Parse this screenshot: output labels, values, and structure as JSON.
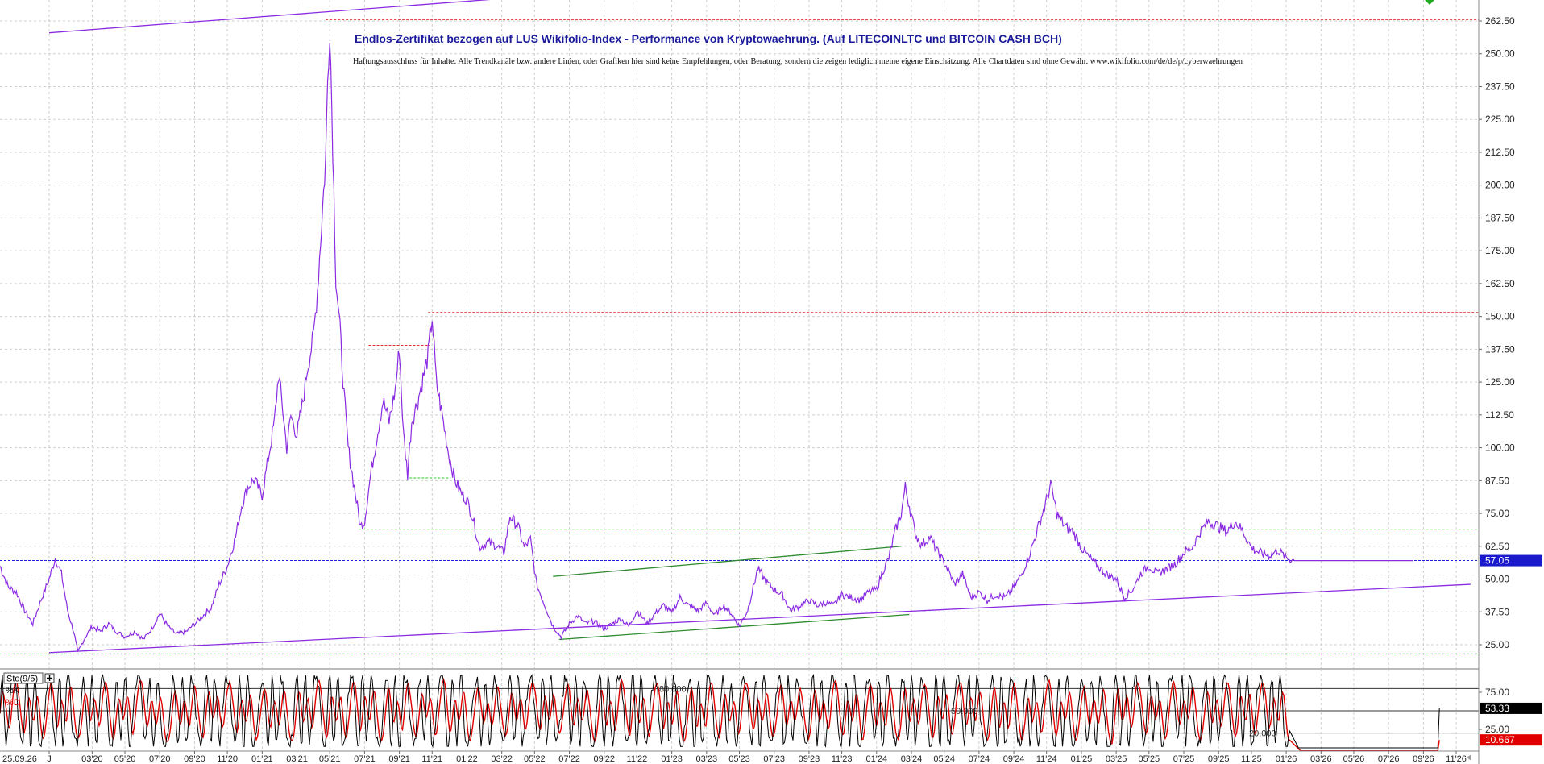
{
  "chart_data": [
    {
      "type": "line",
      "title": "Endlos-Zertifikat bezogen auf LUS Wikifolio-Index - Performance von Kryptowaehrung. (Auf LITECOINLTC und BITCOIN CASH BCH)",
      "subtitle": "Haftungsausschluss für Inhalte: Alle Trendkanäle bzw. andere Linien, oder Grafiken hier sind keine Empfehlungen, oder Beratung, sondern die zeigen lediglich meine eigene Einschätzung. Alle Chartdaten sind ohne Gewähr.  www.wikifolio.com/de/de/p/cyberwaehrungen",
      "xlabel": "",
      "ylabel": "",
      "ylim": [
        20,
        265
      ],
      "xlim": [
        2019.72,
        2026.94
      ],
      "grid": true,
      "y_ticks": [
        "262.50",
        "250.00",
        "237.50",
        "225.00",
        "212.50",
        "200.00",
        "187.50",
        "175.00",
        "162.50",
        "150.00",
        "137.50",
        "125.00",
        "112.50",
        "100.00",
        "87.50",
        "75.00",
        "62.50",
        "50.00",
        "37.50",
        "25.00"
      ],
      "x_ticks": [
        {
          "t": 2019.73,
          "label": "25.09.26"
        },
        {
          "t": 2019.96,
          "label": "J"
        },
        {
          "t": 2020.17,
          "label": "03'20"
        },
        {
          "t": 2020.33,
          "label": "05'20"
        },
        {
          "t": 2020.5,
          "label": "07'20"
        },
        {
          "t": 2020.67,
          "label": "09'20"
        },
        {
          "t": 2020.83,
          "label": "11'20"
        },
        {
          "t": 2021.0,
          "label": "01'21"
        },
        {
          "t": 2021.17,
          "label": "03'21"
        },
        {
          "t": 2021.33,
          "label": "05'21"
        },
        {
          "t": 2021.5,
          "label": "07'21"
        },
        {
          "t": 2021.67,
          "label": "09'21"
        },
        {
          "t": 2021.83,
          "label": "11'21"
        },
        {
          "t": 2022.0,
          "label": "01'22"
        },
        {
          "t": 2022.17,
          "label": "03'22"
        },
        {
          "t": 2022.33,
          "label": "05'22"
        },
        {
          "t": 2022.5,
          "label": "07'22"
        },
        {
          "t": 2022.67,
          "label": "09'22"
        },
        {
          "t": 2022.83,
          "label": "11'22"
        },
        {
          "t": 2023.0,
          "label": "01'23"
        },
        {
          "t": 2023.17,
          "label": "03'23"
        },
        {
          "t": 2023.33,
          "label": "05'23"
        },
        {
          "t": 2023.5,
          "label": "07'23"
        },
        {
          "t": 2023.67,
          "label": "09'23"
        },
        {
          "t": 2023.83,
          "label": "11'23"
        },
        {
          "t": 2024.0,
          "label": "01'24"
        },
        {
          "t": 2024.17,
          "label": "03'24"
        },
        {
          "t": 2024.33,
          "label": "05'24"
        },
        {
          "t": 2024.5,
          "label": "07'24"
        },
        {
          "t": 2024.67,
          "label": "09'24"
        },
        {
          "t": 2024.83,
          "label": "11'24"
        },
        {
          "t": 2025.0,
          "label": "01'25"
        },
        {
          "t": 2025.17,
          "label": "03'25"
        },
        {
          "t": 2025.33,
          "label": "05'25"
        },
        {
          "t": 2025.5,
          "label": "07'25"
        },
        {
          "t": 2025.67,
          "label": "09'25"
        },
        {
          "t": 2025.83,
          "label": "11'25"
        },
        {
          "t": 2026.0,
          "label": "01'26"
        },
        {
          "t": 2026.17,
          "label": "03'26"
        },
        {
          "t": 2026.33,
          "label": "05'26"
        },
        {
          "t": 2026.5,
          "label": "07'26"
        },
        {
          "t": 2026.67,
          "label": "09'26"
        },
        {
          "t": 2026.83,
          "label": "11'26"
        }
      ],
      "series": [
        {
          "color": "#8a2be2",
          "points": [
            [
              2019.72,
              55
            ],
            [
              2019.76,
              47
            ],
            [
              2019.8,
              45
            ],
            [
              2019.84,
              38
            ],
            [
              2019.88,
              33
            ],
            [
              2019.92,
              42
            ],
            [
              2019.96,
              50
            ],
            [
              2019.99,
              58
            ],
            [
              2020.02,
              52
            ],
            [
              2020.05,
              38
            ],
            [
              2020.08,
              30
            ],
            [
              2020.1,
              22
            ],
            [
              2020.13,
              27
            ],
            [
              2020.17,
              32
            ],
            [
              2020.21,
              30
            ],
            [
              2020.25,
              33
            ],
            [
              2020.29,
              30
            ],
            [
              2020.33,
              28
            ],
            [
              2020.38,
              30
            ],
            [
              2020.42,
              27
            ],
            [
              2020.46,
              31
            ],
            [
              2020.5,
              37
            ],
            [
              2020.54,
              32
            ],
            [
              2020.58,
              29
            ],
            [
              2020.63,
              30
            ],
            [
              2020.67,
              33
            ],
            [
              2020.71,
              36
            ],
            [
              2020.75,
              39
            ],
            [
              2020.79,
              48
            ],
            [
              2020.83,
              55
            ],
            [
              2020.87,
              66
            ],
            [
              2020.9,
              78
            ],
            [
              2020.93,
              85
            ],
            [
              2020.96,
              88
            ],
            [
              2021.0,
              82
            ],
            [
              2021.03,
              96
            ],
            [
              2021.06,
              110
            ],
            [
              2021.08,
              128
            ],
            [
              2021.1,
              115
            ],
            [
              2021.12,
              100
            ],
            [
              2021.14,
              112
            ],
            [
              2021.17,
              105
            ],
            [
              2021.2,
              118
            ],
            [
              2021.22,
              130
            ],
            [
              2021.25,
              142
            ],
            [
              2021.27,
              160
            ],
            [
              2021.29,
              185
            ],
            [
              2021.31,
              210
            ],
            [
              2021.32,
              240
            ],
            [
              2021.33,
              262
            ],
            [
              2021.345,
              215
            ],
            [
              2021.36,
              165
            ],
            [
              2021.38,
              145
            ],
            [
              2021.4,
              120
            ],
            [
              2021.42,
              100
            ],
            [
              2021.44,
              90
            ],
            [
              2021.46,
              80
            ],
            [
              2021.48,
              70
            ],
            [
              2021.5,
              72
            ],
            [
              2021.53,
              90
            ],
            [
              2021.56,
              104
            ],
            [
              2021.59,
              118
            ],
            [
              2021.62,
              110
            ],
            [
              2021.65,
              122
            ],
            [
              2021.67,
              138
            ],
            [
              2021.69,
              105
            ],
            [
              2021.71,
              90
            ],
            [
              2021.73,
              110
            ],
            [
              2021.76,
              118
            ],
            [
              2021.79,
              128
            ],
            [
              2021.81,
              135
            ],
            [
              2021.83,
              150
            ],
            [
              2021.85,
              125
            ],
            [
              2021.88,
              112
            ],
            [
              2021.91,
              98
            ],
            [
              2021.94,
              88
            ],
            [
              2021.97,
              83
            ],
            [
              2022.0,
              80
            ],
            [
              2022.03,
              73
            ],
            [
              2022.06,
              62
            ],
            [
              2022.1,
              64
            ],
            [
              2022.14,
              63
            ],
            [
              2022.18,
              60
            ],
            [
              2022.21,
              74
            ],
            [
              2022.25,
              70
            ],
            [
              2022.28,
              62
            ],
            [
              2022.31,
              65
            ],
            [
              2022.34,
              48
            ],
            [
              2022.38,
              40
            ],
            [
              2022.42,
              32
            ],
            [
              2022.46,
              28
            ],
            [
              2022.5,
              33
            ],
            [
              2022.54,
              36
            ],
            [
              2022.58,
              33
            ],
            [
              2022.62,
              34
            ],
            [
              2022.67,
              31
            ],
            [
              2022.71,
              33
            ],
            [
              2022.75,
              35
            ],
            [
              2022.79,
              32
            ],
            [
              2022.83,
              38
            ],
            [
              2022.88,
              33
            ],
            [
              2022.92,
              37
            ],
            [
              2022.96,
              40
            ],
            [
              2023.0,
              37
            ],
            [
              2023.04,
              43
            ],
            [
              2023.08,
              40
            ],
            [
              2023.13,
              38
            ],
            [
              2023.17,
              41
            ],
            [
              2023.21,
              36
            ],
            [
              2023.25,
              40
            ],
            [
              2023.29,
              37
            ],
            [
              2023.33,
              32
            ],
            [
              2023.37,
              38
            ],
            [
              2023.42,
              54
            ],
            [
              2023.46,
              49
            ],
            [
              2023.5,
              46
            ],
            [
              2023.54,
              44
            ],
            [
              2023.58,
              38
            ],
            [
              2023.63,
              40
            ],
            [
              2023.67,
              42
            ],
            [
              2023.71,
              40
            ],
            [
              2023.75,
              41
            ],
            [
              2023.79,
              40
            ],
            [
              2023.83,
              44
            ],
            [
              2023.88,
              43
            ],
            [
              2023.92,
              42
            ],
            [
              2023.96,
              45
            ],
            [
              2024.0,
              46
            ],
            [
              2024.03,
              53
            ],
            [
              2024.06,
              58
            ],
            [
              2024.09,
              68
            ],
            [
              2024.12,
              75
            ],
            [
              2024.14,
              85
            ],
            [
              2024.16,
              78
            ],
            [
              2024.19,
              67
            ],
            [
              2024.22,
              63
            ],
            [
              2024.26,
              66
            ],
            [
              2024.3,
              60
            ],
            [
              2024.34,
              55
            ],
            [
              2024.38,
              48
            ],
            [
              2024.42,
              52
            ],
            [
              2024.46,
              43
            ],
            [
              2024.5,
              45
            ],
            [
              2024.54,
              42
            ],
            [
              2024.58,
              44
            ],
            [
              2024.63,
              43
            ],
            [
              2024.67,
              47
            ],
            [
              2024.71,
              52
            ],
            [
              2024.75,
              60
            ],
            [
              2024.79,
              70
            ],
            [
              2024.83,
              80
            ],
            [
              2024.85,
              86
            ],
            [
              2024.88,
              75
            ],
            [
              2024.92,
              70
            ],
            [
              2024.96,
              68
            ],
            [
              2025.0,
              62
            ],
            [
              2025.04,
              58
            ],
            [
              2025.08,
              55
            ],
            [
              2025.12,
              52
            ],
            [
              2025.17,
              50
            ],
            [
              2025.21,
              43
            ],
            [
              2025.25,
              46
            ],
            [
              2025.29,
              52
            ],
            [
              2025.33,
              55
            ],
            [
              2025.37,
              52
            ],
            [
              2025.42,
              54
            ],
            [
              2025.46,
              56
            ],
            [
              2025.5,
              60
            ],
            [
              2025.54,
              62
            ],
            [
              2025.58,
              68
            ],
            [
              2025.62,
              72
            ],
            [
              2025.67,
              70
            ],
            [
              2025.71,
              68
            ],
            [
              2025.75,
              72
            ],
            [
              2025.79,
              68
            ],
            [
              2025.83,
              62
            ],
            [
              2025.87,
              60
            ],
            [
              2025.92,
              59
            ],
            [
              2025.96,
              61
            ],
            [
              2026.0,
              58
            ],
            [
              2026.04,
              57.05
            ],
            [
              2026.2,
              57.05
            ],
            [
              2026.4,
              57.05
            ],
            [
              2026.55,
              57.05
            ],
            [
              2026.62,
              57.05
            ]
          ]
        }
      ],
      "current_value_label": "57.05",
      "trendlines": [
        {
          "color": "#8a2be2",
          "points": [
            [
              2019.96,
              22
            ],
            [
              2026.9,
              48
            ]
          ]
        },
        {
          "color": "#8a2be2",
          "points": [
            [
              2019.96,
              258
            ],
            [
              2022.85,
              275
            ]
          ]
        },
        {
          "color": "#2e8b2e",
          "points": [
            [
              2022.42,
              51
            ],
            [
              2024.12,
              62.5
            ]
          ]
        },
        {
          "color": "#2e8b2e",
          "points": [
            [
              2022.45,
              27
            ],
            [
              2024.16,
              36.5
            ]
          ]
        }
      ],
      "hlines": [
        {
          "y": 263,
          "x1": 2021.31,
          "x2": 2026.94,
          "color": "#e03030"
        },
        {
          "y": 151.5,
          "x1": 2021.81,
          "x2": 2026.94,
          "color": "#e03030"
        },
        {
          "y": 139,
          "x1": 2021.52,
          "x2": 2021.82,
          "color": "#e03030"
        },
        {
          "y": 88.5,
          "x1": 2021.72,
          "x2": 2021.92,
          "color": "#33cc33"
        },
        {
          "y": 69,
          "x1": 2021.47,
          "x2": 2026.94,
          "color": "#33cc33"
        },
        {
          "y": 57.05,
          "x1": 2019.72,
          "x2": 2026.94,
          "color": "#2222dd"
        },
        {
          "y": 21.5,
          "x1": 2019.72,
          "x2": 2026.94,
          "color": "#33cc33"
        }
      ],
      "colors": {
        "price": "#8a2be2",
        "current_label_bg": "#1a1acc",
        "grid": "#c8c8c8"
      }
    },
    {
      "type": "line",
      "title": "Sto(9/5)",
      "ylim": [
        0,
        100
      ],
      "levels": [
        80,
        50,
        20
      ],
      "level_labels": [
        "80.000",
        "50.000",
        "20.000"
      ],
      "y_ticks": [
        "75.00",
        "25.00"
      ],
      "legend": [
        {
          "name": "%K",
          "color": "#000000"
        },
        {
          "name": "%D",
          "color": "#e00000"
        }
      ],
      "series": [
        {
          "name": "%K",
          "color": "#000000",
          "cycle_days": 20,
          "end_value": 53.33
        },
        {
          "name": "%D",
          "color": "#e00000",
          "cycle_days": 20,
          "end_value": 10.667
        }
      ],
      "value_labels": [
        "53.33",
        "10.667"
      ]
    }
  ]
}
